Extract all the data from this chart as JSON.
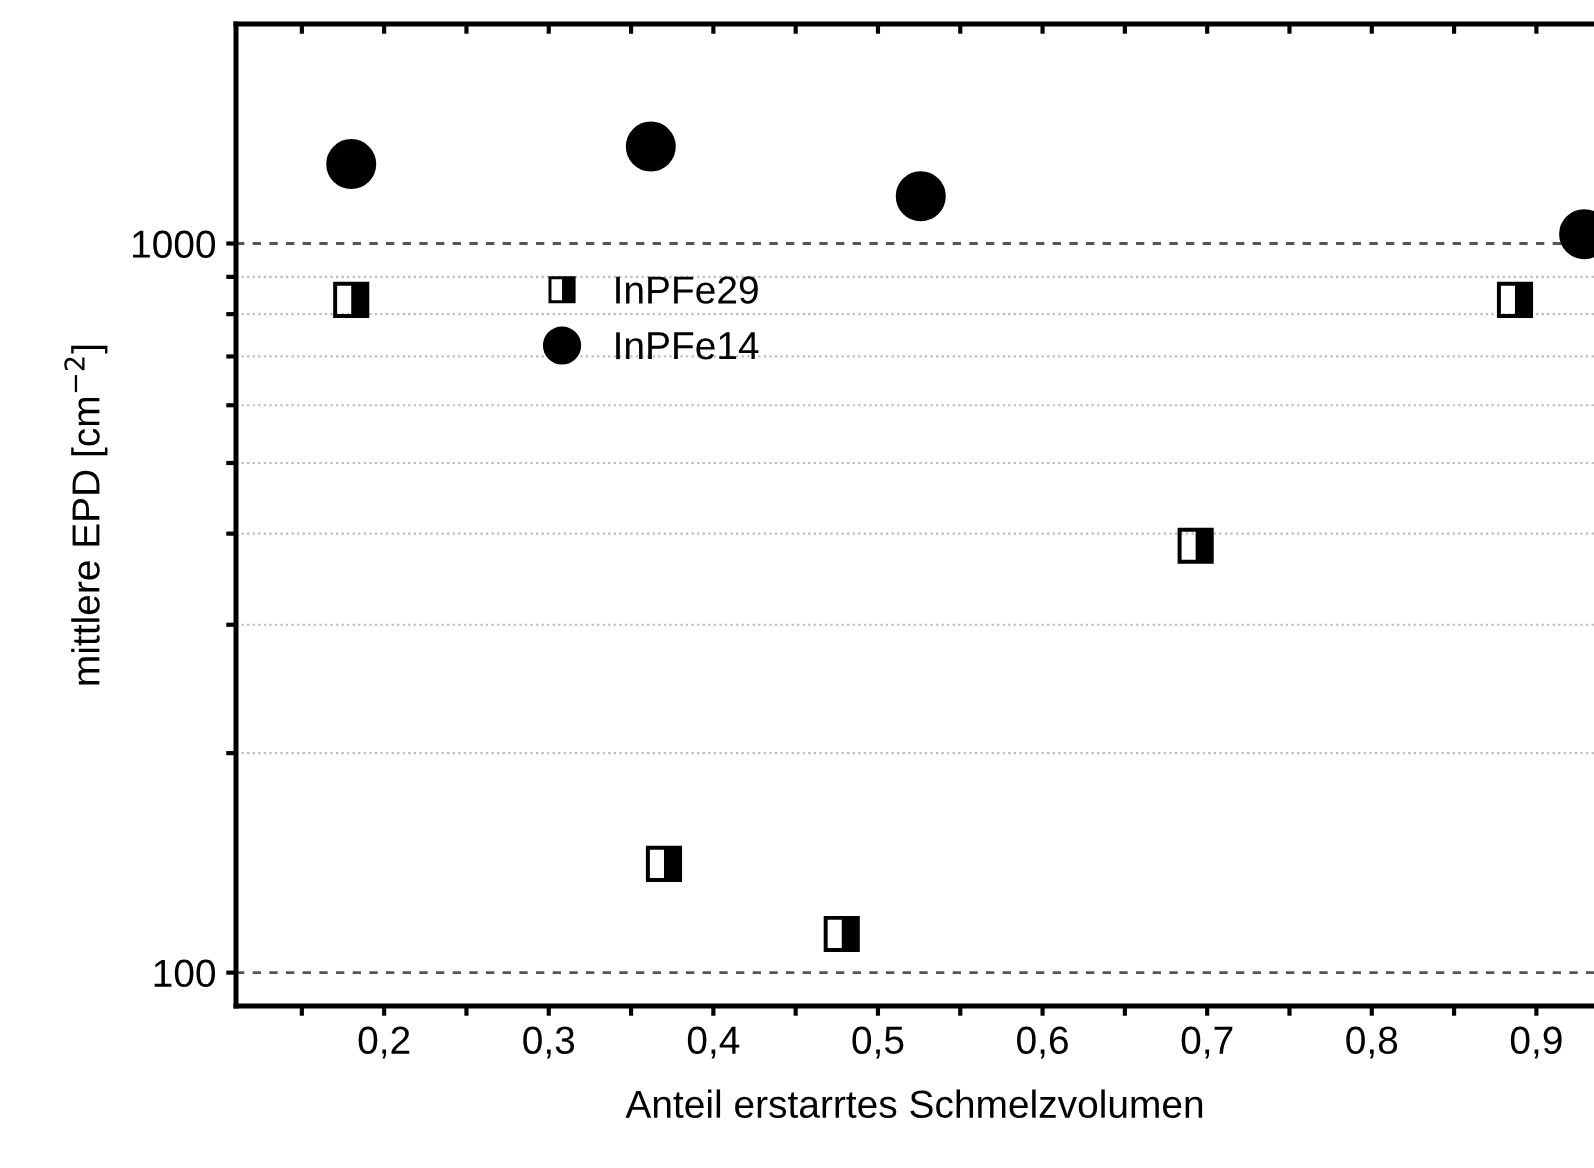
{
  "chart_data": {
    "type": "scatter",
    "xlabel": "Anteil erstarrtes Schmelzvolumen",
    "ylabel": "mittlere EPD [cm$^{−2}$]",
    "log": "y",
    "grid": "y",
    "legend": "top left",
    "xlim": [
      0.11,
      0.935
    ],
    "ylim": [
      90,
      2000
    ],
    "xticks": [
      {
        "value": 0.15,
        "label": null
      },
      {
        "value": 0.2,
        "label": "0,2"
      },
      {
        "value": 0.25,
        "label": null
      },
      {
        "value": 0.3,
        "label": "0,3"
      },
      {
        "value": 0.35,
        "label": null
      },
      {
        "value": 0.4,
        "label": "0,4"
      },
      {
        "value": 0.45,
        "label": null
      },
      {
        "value": 0.5,
        "label": "0,5"
      },
      {
        "value": 0.55,
        "label": null
      },
      {
        "value": 0.6,
        "label": "0,6"
      },
      {
        "value": 0.65,
        "label": null
      },
      {
        "value": 0.7,
        "label": "0,7"
      },
      {
        "value": 0.75,
        "label": null
      },
      {
        "value": 0.8,
        "label": "0,8"
      },
      {
        "value": 0.85,
        "label": null
      },
      {
        "value": 0.9,
        "label": "0,9"
      }
    ],
    "yticks": [
      100,
      {
        "value": 200,
        "label": null
      },
      {
        "value": 300,
        "label": null
      },
      {
        "value": 400,
        "label": null
      },
      {
        "value": 500,
        "label": null
      },
      {
        "value": 600,
        "label": null
      },
      {
        "value": 700,
        "label": null
      },
      {
        "value": 800,
        "label": null
      },
      {
        "value": 900,
        "label": null
      },
      1000
    ],
    "series": [
      {
        "name": "InPFe29",
        "color": "#000000",
        "marker": "square",
        "x": [
          0.18,
          0.37,
          0.478,
          0.693,
          0.887
        ],
        "values": [
          837,
          141,
          113,
          385,
          837
        ]
      },
      {
        "name": "InPFe14",
        "color": "#000000",
        "marker": "circle",
        "x": [
          0.18,
          0.362,
          0.526,
          0.929
        ],
        "values": [
          1285,
          1358,
          1161,
          1030
        ]
      }
    ]
  }
}
